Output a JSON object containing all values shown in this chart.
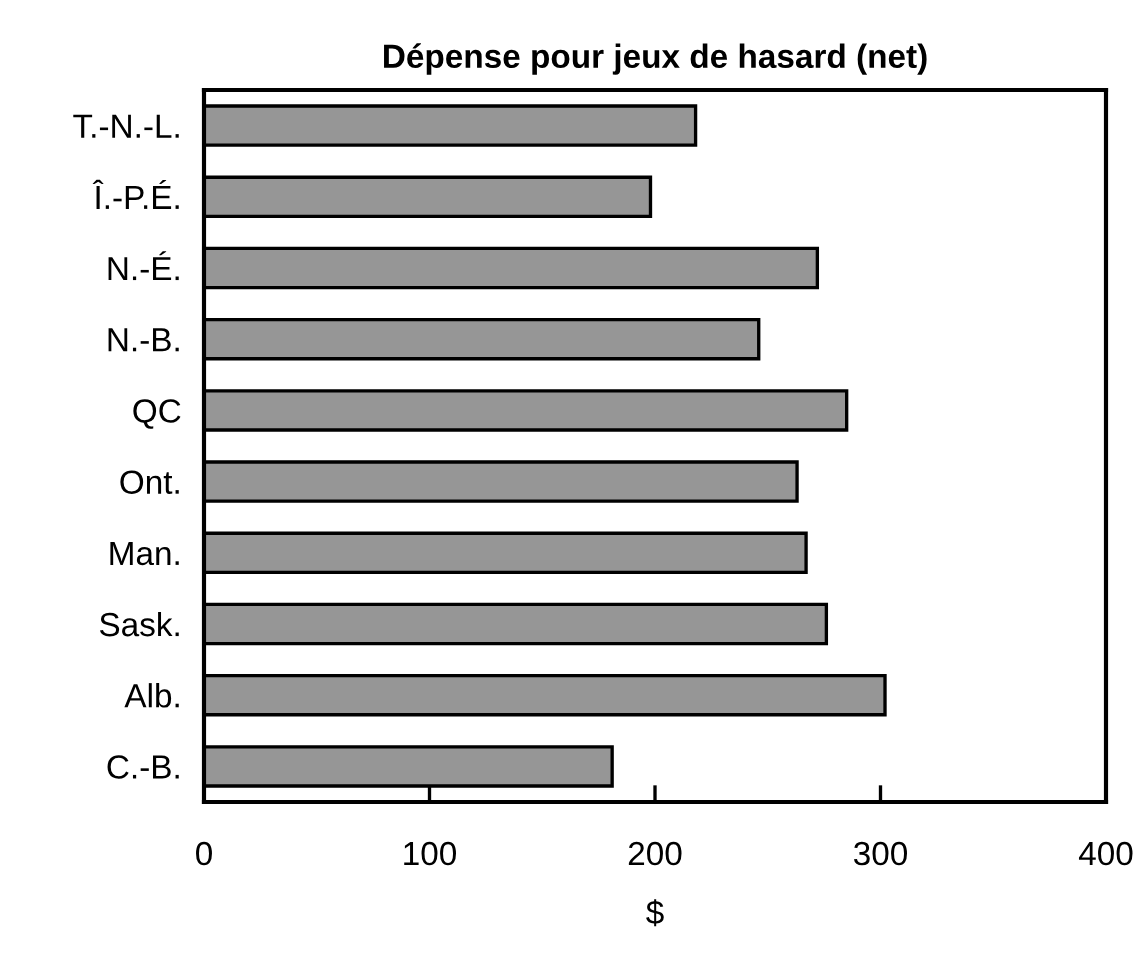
{
  "chart_data": {
    "type": "bar",
    "orientation": "horizontal",
    "title": "Dépense pour jeux de hasard (net)",
    "xlabel": "$",
    "categories": [
      "T.-N.-L.",
      "Î.-P.É.",
      "N.-É.",
      "N.-B.",
      "QC",
      "Ont.",
      "Man.",
      "Sask.",
      "Alb.",
      "C.-B."
    ],
    "values": [
      218,
      198,
      272,
      246,
      285,
      263,
      267,
      276,
      302,
      181
    ],
    "color": "#969696",
    "xlim": [
      0,
      400
    ],
    "xticks": [
      0,
      100,
      200,
      300,
      400
    ],
    "grid": false,
    "legend": false
  }
}
